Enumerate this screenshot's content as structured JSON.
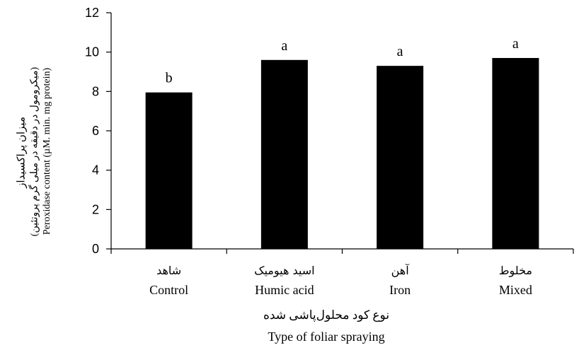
{
  "chart_data": {
    "type": "bar",
    "categories_fa": [
      "شاهد",
      "اسید هیومیک",
      "آهن",
      "مخلوط"
    ],
    "categories": [
      "Control",
      "Humic acid",
      "Iron",
      "Mixed"
    ],
    "values": [
      7.95,
      9.6,
      9.3,
      9.7
    ],
    "significance_letters": [
      "b",
      "a",
      "a",
      "a"
    ],
    "ylim": [
      0,
      12
    ],
    "yticks": [
      "0",
      "2",
      "4",
      "6",
      "8",
      "10",
      "12"
    ],
    "ylabel_fa_line1": "میزان پراکسیداز",
    "ylabel_fa_line2": "(میکرومول در دقیقه در میلی گرم پروتئین)",
    "ylabel_en": "Peroxidase content (µM. min. mg protein)",
    "xlabel_fa": "نوع کود محلول‌پاشی شده",
    "xlabel_en": "Type of foliar spraying",
    "bar_color": "#000000",
    "grid": false
  }
}
